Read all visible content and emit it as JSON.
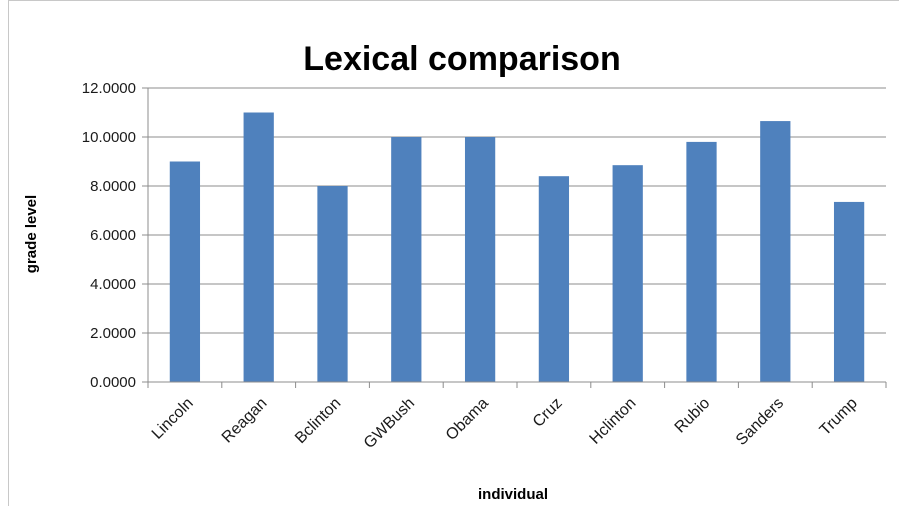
{
  "chart_data": {
    "type": "bar",
    "title": "Lexical comparison",
    "xlabel": "individual",
    "ylabel": "grade level",
    "categories": [
      "Lincoln",
      "Reagan",
      "Bclinton",
      "GWBush",
      "Obama",
      "Cruz",
      "Hclinton",
      "Rubio",
      "Sanders",
      "Trump"
    ],
    "values": [
      9.0,
      11.0,
      8.0,
      10.0,
      10.0,
      8.4,
      8.85,
      9.8,
      10.65,
      7.35
    ],
    "ylim": [
      0,
      12
    ],
    "yticks": [
      "0.0000",
      "2.0000",
      "4.0000",
      "6.0000",
      "8.0000",
      "10.0000",
      "12.0000"
    ],
    "grid": true,
    "bar_color": "#4f81bd"
  }
}
